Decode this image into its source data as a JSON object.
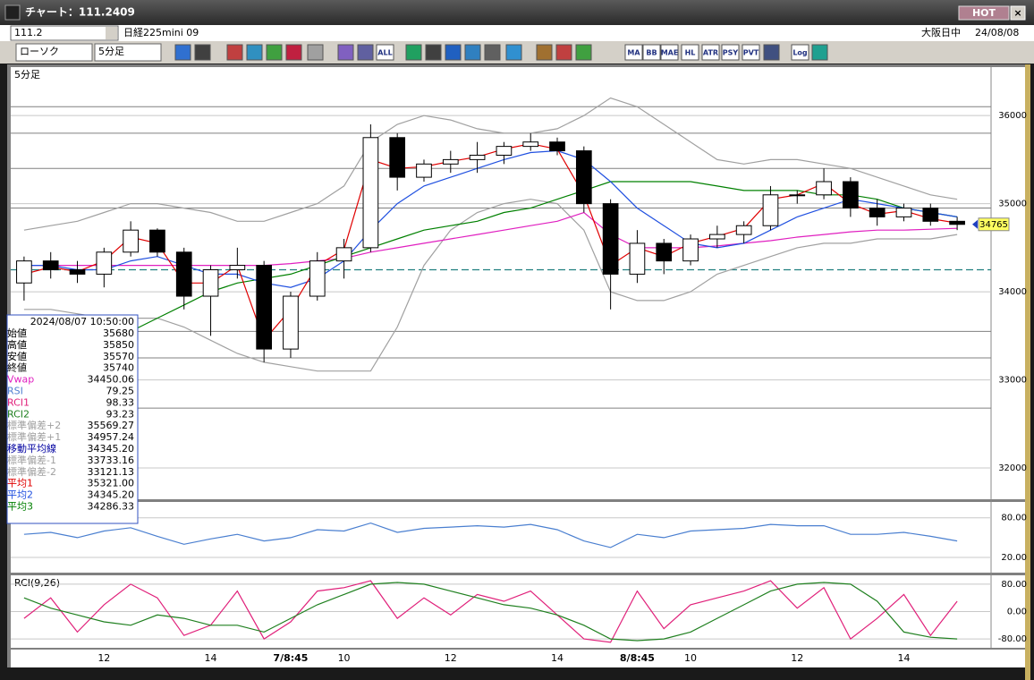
{
  "window": {
    "title": "チャート：111.2409",
    "hot": "HOT"
  },
  "toolbar": {
    "code": "111.2",
    "name": "日経225mini 09",
    "market": "大阪日中",
    "date": "24/08/08",
    "chart_type": "ローソク",
    "interval": "5分足",
    "buttons": [
      "ALL",
      "MA",
      "BB",
      "MAE",
      "HL",
      "ATR",
      "PSY",
      "PVT",
      "Log"
    ]
  },
  "info": {
    "datetime": "2024/08/07 10:50:00",
    "rows": [
      {
        "label": "始値",
        "value": "35680",
        "color": "#000000"
      },
      {
        "label": "高値",
        "value": "35850",
        "color": "#000000"
      },
      {
        "label": "安値",
        "value": "35570",
        "color": "#000000"
      },
      {
        "label": "終値",
        "value": "35740",
        "color": "#000000"
      },
      {
        "label": "Vwap",
        "value": "34450.06",
        "color": "#e020c0"
      },
      {
        "label": "RSI",
        "value": "79.25",
        "color": "#5080d0"
      },
      {
        "label": "RCI1",
        "value": "98.33",
        "color": "#e0207a"
      },
      {
        "label": "RCI2",
        "value": "93.23",
        "color": "#208020"
      },
      {
        "label": "標準偏差+2",
        "value": "35569.27",
        "color": "#a0a0a0"
      },
      {
        "label": "標準偏差+1",
        "value": "34957.24",
        "color": "#a0a0a0"
      },
      {
        "label": "移動平均線",
        "value": "34345.20",
        "color": "#0000a0"
      },
      {
        "label": "標準偏差-1",
        "value": "33733.16",
        "color": "#a0a0a0"
      },
      {
        "label": "標準偏差-2",
        "value": "33121.13",
        "color": "#a0a0a0"
      },
      {
        "label": "平均1",
        "value": "35321.00",
        "color": "#e00000"
      },
      {
        "label": "平均2",
        "value": "34345.20",
        "color": "#2050e0"
      },
      {
        "label": "平均3",
        "value": "34286.33",
        "color": "#008000"
      }
    ]
  },
  "chart_data": [
    {
      "type": "candlestick",
      "title": "5分足",
      "categories": [
        null,
        null,
        null,
        "12",
        null,
        null,
        null,
        "14",
        null,
        null,
        "7/8:45",
        null,
        "10",
        null,
        null,
        null,
        "12",
        null,
        null,
        null,
        "14",
        null,
        null,
        "8/8:45",
        null,
        "10",
        null,
        null,
        null,
        "12",
        null,
        null,
        null,
        "14",
        null,
        null
      ],
      "open": [
        34100,
        34350,
        34250,
        34200,
        34450,
        34700,
        34450,
        33950,
        34250,
        34300,
        33350,
        33950,
        34350,
        34500,
        35750,
        35300,
        35450,
        35500,
        35550,
        35650,
        35700,
        35600,
        35000,
        34200,
        34550,
        34350,
        34600,
        34650,
        34750,
        35100,
        35100,
        35250,
        34950,
        34850,
        34950,
        34800
      ],
      "high": [
        34400,
        34450,
        34350,
        34500,
        34800,
        34720,
        34500,
        34300,
        34500,
        34350,
        34000,
        34450,
        34600,
        35900,
        35800,
        35500,
        35600,
        35700,
        35700,
        35800,
        35750,
        35650,
        35050,
        34700,
        34600,
        34650,
        34750,
        34800,
        35200,
        35150,
        35400,
        35300,
        35050,
        35000,
        35000,
        34850
      ],
      "low": [
        33900,
        34150,
        34100,
        34050,
        34400,
        34400,
        33800,
        33500,
        34150,
        33200,
        33250,
        33900,
        34150,
        34450,
        35150,
        35250,
        35350,
        35350,
        35450,
        35600,
        35550,
        34900,
        33800,
        34100,
        34200,
        34300,
        34500,
        34550,
        34700,
        35000,
        35050,
        34850,
        34750,
        34800,
        34750,
        34700
      ],
      "close": [
        34350,
        34250,
        34200,
        34450,
        34700,
        34450,
        33950,
        34250,
        34300,
        33350,
        33950,
        34350,
        34500,
        35750,
        35300,
        35450,
        35500,
        35550,
        35650,
        35700,
        35600,
        35000,
        34200,
        34550,
        34350,
        34600,
        34650,
        34750,
        35100,
        35100,
        35250,
        34950,
        34850,
        34950,
        34800,
        34765
      ],
      "up_color": "#ffffff",
      "down_color": "#000000",
      "series": [
        {
          "name": "標準偏差+2",
          "color": "#a0a0a0",
          "values": [
            34700,
            34750,
            34800,
            34900,
            35000,
            35000,
            34950,
            34900,
            34800,
            34800,
            34900,
            35000,
            35200,
            35700,
            35900,
            36000,
            35950,
            35850,
            35800,
            35800,
            35850,
            36000,
            36200,
            36100,
            35900,
            35700,
            35500,
            35450,
            35500,
            35500,
            35450,
            35400,
            35300,
            35200,
            35100,
            35050
          ]
        },
        {
          "name": "標準偏差-2",
          "color": "#a0a0a0",
          "values": [
            33800,
            33800,
            33750,
            33700,
            33700,
            33700,
            33600,
            33450,
            33300,
            33200,
            33150,
            33100,
            33100,
            33100,
            33600,
            34300,
            34700,
            34900,
            35000,
            35050,
            35000,
            34700,
            34000,
            33900,
            33900,
            34000,
            34200,
            34300,
            34400,
            34500,
            34550,
            34550,
            34600,
            34600,
            34600,
            34650
          ]
        },
        {
          "name": "Vwap",
          "color": "#e020c0",
          "values": [
            34300,
            34300,
            34300,
            34300,
            34300,
            34300,
            34300,
            34300,
            34300,
            34300,
            34320,
            34350,
            34380,
            34450,
            34500,
            34550,
            34600,
            34650,
            34700,
            34750,
            34800,
            34900,
            34650,
            34500,
            34500,
            34500,
            34520,
            34550,
            34580,
            34620,
            34650,
            34680,
            34700,
            34700,
            34710,
            34720
          ]
        },
        {
          "name": "平均3",
          "color": "#008000",
          "values": [
            null,
            null,
            null,
            null,
            33550,
            33700,
            33850,
            34000,
            34100,
            34150,
            34200,
            34300,
            34400,
            34500,
            34600,
            34700,
            34750,
            34800,
            34900,
            34950,
            35050,
            35150,
            35250,
            35250,
            35250,
            35250,
            35200,
            35150,
            35150,
            35150,
            35100,
            35100,
            35050,
            34950,
            34900,
            34850
          ]
        },
        {
          "name": "平均2",
          "color": "#2050e0",
          "values": [
            34300,
            34300,
            34250,
            34250,
            34350,
            34400,
            34300,
            34200,
            34200,
            34100,
            34050,
            34150,
            34350,
            34700,
            35000,
            35200,
            35300,
            35400,
            35500,
            35580,
            35600,
            35500,
            35250,
            34950,
            34750,
            34550,
            34500,
            34550,
            34700,
            34850,
            34950,
            35050,
            35000,
            34950,
            34900,
            34850
          ]
        },
        {
          "name": "平均1",
          "color": "#e00000",
          "values": [
            34200,
            34280,
            34230,
            34350,
            34620,
            34550,
            34100,
            34100,
            34300,
            33450,
            33800,
            34300,
            34480,
            35500,
            35400,
            35420,
            35480,
            35530,
            35620,
            35680,
            35620,
            35100,
            34300,
            34500,
            34400,
            34550,
            34630,
            34720,
            35050,
            35100,
            35230,
            35000,
            34880,
            34920,
            34830,
            34780
          ]
        }
      ],
      "h_lines": [
        36100,
        35800,
        35400,
        34950,
        33550,
        33250,
        32680
      ],
      "h_line_color": "#808080",
      "dashed_line": 34250,
      "dashed_color": "#208080",
      "last_price": 34765,
      "ylim": [
        31645,
        36550
      ],
      "yticks": [
        36000,
        35000,
        34000,
        33000,
        32000
      ]
    },
    {
      "type": "line",
      "series": [
        {
          "name": "RSI",
          "color": "#4a7fd0",
          "values": [
            55,
            58,
            50,
            60,
            65,
            52,
            40,
            48,
            55,
            45,
            50,
            62,
            60,
            72,
            58,
            64,
            66,
            68,
            66,
            70,
            62,
            45,
            35,
            55,
            50,
            60,
            62,
            64,
            70,
            68,
            68,
            55,
            55,
            58,
            52,
            45
          ]
        }
      ],
      "ylim": [
        -3,
        104
      ],
      "yticks": [
        {
          "value": 80,
          "label": "80.00"
        },
        {
          "value": 20,
          "label": "20.00"
        }
      ]
    },
    {
      "type": "line",
      "title": "RCI(9,26)",
      "series": [
        {
          "name": "RCI1",
          "color": "#e0207a",
          "values": [
            -20,
            40,
            -60,
            20,
            80,
            40,
            -70,
            -40,
            60,
            -80,
            -30,
            60,
            70,
            90,
            -20,
            40,
            -10,
            50,
            30,
            60,
            -10,
            -80,
            -90,
            60,
            -50,
            20,
            40,
            60,
            90,
            10,
            70,
            -80,
            -20,
            50,
            -70,
            30
          ]
        },
        {
          "name": "RCI2",
          "color": "#208020",
          "values": [
            40,
            10,
            -10,
            -30,
            -40,
            -10,
            -20,
            -40,
            -40,
            -60,
            -20,
            20,
            50,
            80,
            85,
            80,
            60,
            40,
            20,
            10,
            -10,
            -40,
            -80,
            -85,
            -80,
            -60,
            -20,
            20,
            60,
            80,
            85,
            80,
            30,
            -60,
            -75,
            -80
          ]
        }
      ],
      "ylim": [
        -106,
        106
      ],
      "yticks": [
        {
          "value": 80,
          "label": "80.00"
        },
        {
          "value": 0,
          "label": "0.00"
        },
        {
          "value": -80,
          "label": "-80.00"
        }
      ]
    }
  ]
}
